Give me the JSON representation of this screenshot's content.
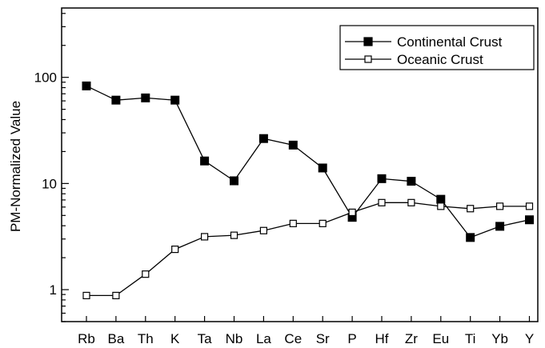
{
  "chart_data": {
    "type": "line",
    "title": "",
    "xlabel": "",
    "ylabel": "PM-Normalized Value",
    "yscale": "log",
    "ylim": [
      0.5,
      450
    ],
    "yticks": [
      1,
      10,
      100
    ],
    "ytick_labels": [
      "1",
      "10",
      "100"
    ],
    "grid": false,
    "legend_position": "top-right",
    "categories": [
      "Rb",
      "Ba",
      "Th",
      "K",
      "Ta",
      "Nb",
      "La",
      "Ce",
      "Sr",
      "P",
      "Hf",
      "Zr",
      "Eu",
      "Ti",
      "Yb",
      "Y"
    ],
    "series": [
      {
        "name": "Continental Crust",
        "marker": "filled-square",
        "color": "#000000",
        "values": [
          83,
          61,
          64,
          61,
          16.3,
          10.6,
          26.5,
          23,
          14,
          4.8,
          11.1,
          10.5,
          7.1,
          3.1,
          3.95,
          4.55
        ]
      },
      {
        "name": "Oceanic Crust",
        "marker": "open-square",
        "color": "#000000",
        "values": [
          0.88,
          0.88,
          1.4,
          2.4,
          3.15,
          3.25,
          3.6,
          4.2,
          4.2,
          5.35,
          6.6,
          6.6,
          6.1,
          5.8,
          6.1,
          6.1
        ]
      }
    ]
  }
}
